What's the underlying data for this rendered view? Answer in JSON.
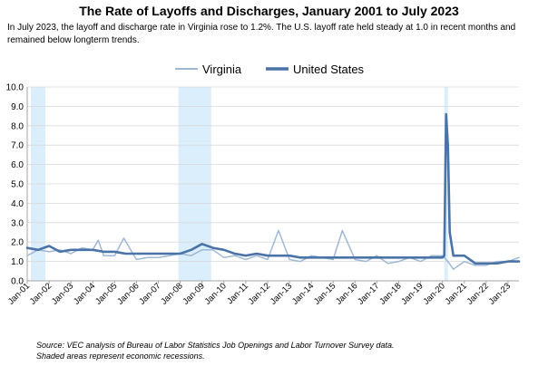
{
  "title": "The Rate of Layoffs and Discharges, January 2001 to July 2023",
  "subtitle": "In July 2023, the layoff and discharge rate in Virginia rose to 1.2%. The U.S. layoff rate held steady at 1.0 in recent months and remained below longterm trends.",
  "source_line1": "Source: VEC analysis of Bureau of Labor Statistics Job Openings and Labor Turnover Survey data.",
  "source_line2": "Shaded areas represent economic recessions.",
  "colors": {
    "virginia": "#9fb8d6",
    "united_states": "#4a73a8",
    "recession": "#dbeefb",
    "grid": "#d9d9d9"
  },
  "chart_data": {
    "type": "line",
    "title": "",
    "xlabel": "",
    "ylabel": "",
    "ylim": [
      0,
      10
    ],
    "yticks": [
      "0.0",
      "1.0",
      "2.0",
      "3.0",
      "4.0",
      "5.0",
      "6.0",
      "7.0",
      "8.0",
      "9.0",
      "10.0"
    ],
    "xlim": [
      "Jan-01",
      "Jul-23"
    ],
    "xticks": [
      "Jan-01",
      "Jan-02",
      "Jan-03",
      "Jan-04",
      "Jan-05",
      "Jan-06",
      "Jan-07",
      "Jan-08",
      "Jan-09",
      "Jan-10",
      "Jan-11",
      "Jan-12",
      "Jan-13",
      "Jan-14",
      "Jan-15",
      "Jan-16",
      "Jan-17",
      "Jan-18",
      "Jan-19",
      "Jan-20",
      "Jan-21",
      "Jan-22",
      "Jan-23"
    ],
    "grid": true,
    "legend": "top-center",
    "recessions": [
      {
        "start": "Mar-01",
        "end": "Nov-01"
      },
      {
        "start": "Dec-07",
        "end": "Jun-09"
      },
      {
        "start": "Feb-20",
        "end": "Apr-20"
      }
    ],
    "series": [
      {
        "name": "Virginia",
        "points": [
          [
            "Jan-01",
            1.3
          ],
          [
            "Jul-01",
            1.6
          ],
          [
            "Jan-02",
            1.5
          ],
          [
            "Jul-02",
            1.6
          ],
          [
            "Jan-03",
            1.4
          ],
          [
            "Jul-03",
            1.7
          ],
          [
            "Jan-04",
            1.6
          ],
          [
            "Apr-04",
            2.1
          ],
          [
            "Jul-04",
            1.3
          ],
          [
            "Jan-05",
            1.3
          ],
          [
            "Jun-05",
            2.2
          ],
          [
            "Jan-06",
            1.1
          ],
          [
            "Jul-06",
            1.2
          ],
          [
            "Jan-07",
            1.2
          ],
          [
            "Jul-07",
            1.3
          ],
          [
            "Jan-08",
            1.4
          ],
          [
            "Jul-08",
            1.3
          ],
          [
            "Jan-09",
            1.6
          ],
          [
            "Jul-09",
            1.6
          ],
          [
            "Jan-10",
            1.2
          ],
          [
            "Jul-10",
            1.3
          ],
          [
            "Jan-11",
            1.1
          ],
          [
            "Jul-11",
            1.3
          ],
          [
            "Jan-12",
            1.1
          ],
          [
            "Jul-12",
            2.6
          ],
          [
            "Jan-13",
            1.1
          ],
          [
            "Jul-13",
            1.0
          ],
          [
            "Jan-14",
            1.3
          ],
          [
            "Jul-14",
            1.2
          ],
          [
            "Jan-15",
            1.1
          ],
          [
            "Jun-15",
            2.6
          ],
          [
            "Jan-16",
            1.1
          ],
          [
            "Jul-16",
            1.0
          ],
          [
            "Jan-17",
            1.3
          ],
          [
            "Jul-17",
            0.9
          ],
          [
            "Jan-18",
            1.0
          ],
          [
            "Jul-18",
            1.2
          ],
          [
            "Jan-19",
            1.0
          ],
          [
            "Jul-19",
            1.3
          ],
          [
            "Jan-20",
            1.3
          ],
          [
            "Apr-20",
            1.0
          ],
          [
            "Jul-20",
            0.6
          ],
          [
            "Jan-21",
            1.0
          ],
          [
            "Jul-21",
            0.8
          ],
          [
            "Jan-22",
            0.8
          ],
          [
            "Jul-22",
            1.0
          ],
          [
            "Jan-23",
            1.0
          ],
          [
            "Jul-23",
            1.2
          ]
        ]
      },
      {
        "name": "United States",
        "points": [
          [
            "Jan-01",
            1.7
          ],
          [
            "Jul-01",
            1.6
          ],
          [
            "Jan-02",
            1.8
          ],
          [
            "Jul-02",
            1.5
          ],
          [
            "Jan-03",
            1.6
          ],
          [
            "Jul-03",
            1.6
          ],
          [
            "Jan-04",
            1.6
          ],
          [
            "Jul-04",
            1.5
          ],
          [
            "Jan-05",
            1.5
          ],
          [
            "Jul-05",
            1.4
          ],
          [
            "Jan-06",
            1.4
          ],
          [
            "Jul-06",
            1.4
          ],
          [
            "Jan-07",
            1.4
          ],
          [
            "Jul-07",
            1.4
          ],
          [
            "Jan-08",
            1.4
          ],
          [
            "Jul-08",
            1.6
          ],
          [
            "Jan-09",
            1.9
          ],
          [
            "Jul-09",
            1.7
          ],
          [
            "Jan-10",
            1.6
          ],
          [
            "Jul-10",
            1.4
          ],
          [
            "Jan-11",
            1.3
          ],
          [
            "Jul-11",
            1.4
          ],
          [
            "Jan-12",
            1.3
          ],
          [
            "Jul-12",
            1.3
          ],
          [
            "Jan-13",
            1.3
          ],
          [
            "Jul-13",
            1.2
          ],
          [
            "Jan-14",
            1.2
          ],
          [
            "Jul-14",
            1.2
          ],
          [
            "Jan-15",
            1.2
          ],
          [
            "Jul-15",
            1.2
          ],
          [
            "Jan-16",
            1.2
          ],
          [
            "Jul-16",
            1.2
          ],
          [
            "Jan-17",
            1.2
          ],
          [
            "Jul-17",
            1.2
          ],
          [
            "Jan-18",
            1.2
          ],
          [
            "Jul-18",
            1.2
          ],
          [
            "Jan-19",
            1.2
          ],
          [
            "Jul-19",
            1.2
          ],
          [
            "Jan-20",
            1.2
          ],
          [
            "Feb-20",
            1.3
          ],
          [
            "Mar-20",
            8.6
          ],
          [
            "Apr-20",
            7.0
          ],
          [
            "May-20",
            2.5
          ],
          [
            "Jul-20",
            1.3
          ],
          [
            "Jan-21",
            1.3
          ],
          [
            "Jul-21",
            0.9
          ],
          [
            "Jan-22",
            0.9
          ],
          [
            "Jul-22",
            0.9
          ],
          [
            "Jan-23",
            1.0
          ],
          [
            "Jul-23",
            1.0
          ]
        ]
      }
    ]
  }
}
